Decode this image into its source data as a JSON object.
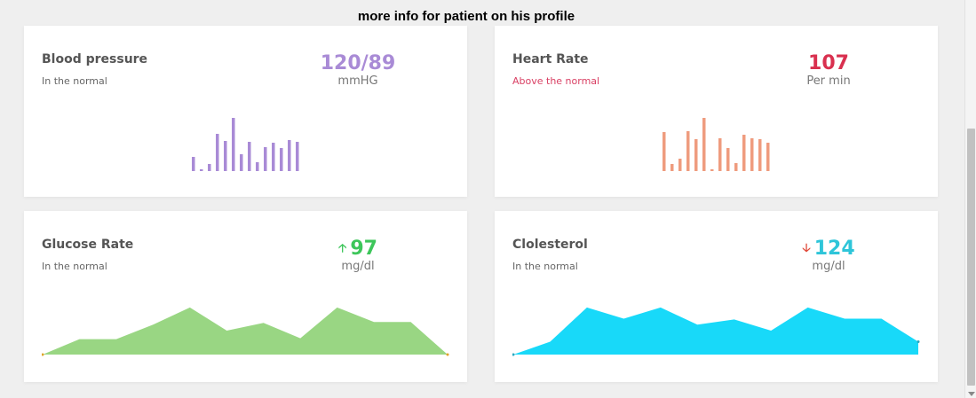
{
  "page": {
    "title": "more info for patient on his profile"
  },
  "cards": {
    "blood_pressure": {
      "title": "Blood pressure",
      "status": "In the normal",
      "value": "120/89",
      "unit": "mmHG",
      "color": "#a98bd6",
      "bars": [
        16,
        2,
        8,
        42,
        34,
        60,
        19,
        33,
        10,
        27,
        32,
        26,
        35,
        33
      ]
    },
    "heart_rate": {
      "title": "Heart Rate",
      "status": "Above the normal",
      "value": "107",
      "unit": "Per min",
      "color": "#d9304f",
      "bar_color": "#ef9c7f",
      "bars": [
        44,
        8,
        14,
        45,
        36,
        60,
        2,
        37,
        26,
        9,
        41,
        37,
        36,
        32
      ]
    },
    "glucose_rate": {
      "title": "Glucose Rate",
      "status": "In the normal",
      "value": "97",
      "unit": "mg/dl",
      "color": "#3dc65a",
      "fill_color": "#99d683",
      "trend": "up-arrow-icon",
      "points": [
        0,
        18,
        18,
        35,
        55,
        28,
        37,
        19,
        55,
        38,
        38,
        0
      ]
    },
    "cholesterol": {
      "title": "Clolesterol",
      "status": "In the normal",
      "value": "124",
      "unit": "mg/dl",
      "color": "#2ec5d9",
      "fill_color": "#18d9f9",
      "trend": "down-arrow-icon",
      "points": [
        0,
        15,
        55,
        42,
        55,
        35,
        41,
        28,
        55,
        42,
        42,
        15
      ]
    }
  }
}
